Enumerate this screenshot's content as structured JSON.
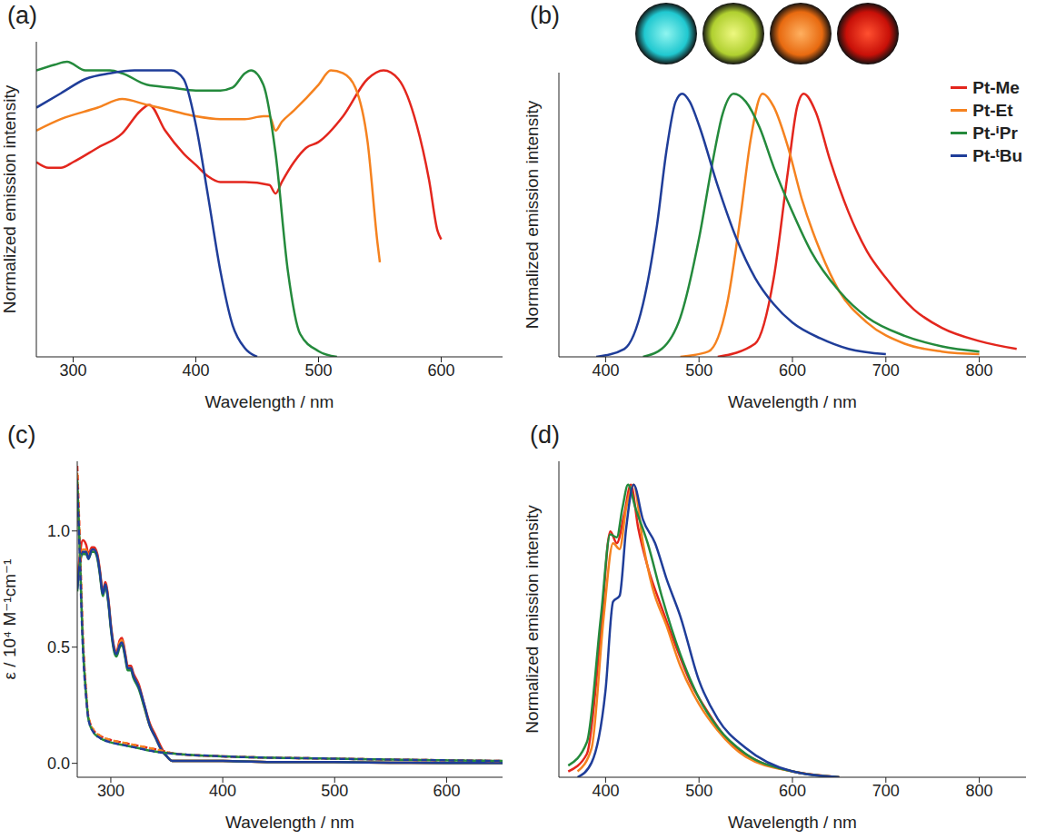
{
  "chart_data": [
    {
      "type": "line",
      "title": "(a)",
      "x_label": "Wavelength / nm",
      "y_label": "Normalized emission intensity",
      "xlim": [
        270,
        650
      ],
      "xticks": [
        300,
        400,
        500,
        600
      ],
      "ylim": [
        0,
        1.1
      ],
      "tick_labels": "x",
      "series": [
        {
          "name": "Pt-Me",
          "color": "#e3261d",
          "x": [
            270,
            280,
            290,
            300,
            320,
            340,
            355,
            362,
            375,
            390,
            400,
            410,
            420,
            440,
            460,
            465,
            470,
            480,
            490,
            500,
            520,
            540,
            553,
            565,
            580,
            590,
            597,
            600
          ],
          "values": [
            0.68,
            0.66,
            0.66,
            0.68,
            0.73,
            0.78,
            0.86,
            0.88,
            0.79,
            0.71,
            0.67,
            0.63,
            0.61,
            0.61,
            0.6,
            0.57,
            0.61,
            0.68,
            0.73,
            0.75,
            0.84,
            0.97,
            1.0,
            0.97,
            0.81,
            0.62,
            0.44,
            0.41
          ]
        },
        {
          "name": "Pt-Et",
          "color": "#f5821f",
          "x": [
            270,
            290,
            320,
            340,
            360,
            380,
            400,
            420,
            440,
            455,
            460,
            465,
            470,
            480,
            500,
            510,
            520,
            530,
            540,
            548,
            550
          ],
          "values": [
            0.79,
            0.83,
            0.87,
            0.9,
            0.88,
            0.86,
            0.84,
            0.83,
            0.83,
            0.84,
            0.84,
            0.79,
            0.82,
            0.86,
            0.95,
            1.0,
            0.99,
            0.94,
            0.75,
            0.4,
            0.33
          ]
        },
        {
          "name": "Pt-ⁱPr",
          "color": "#248a3c",
          "x": [
            270,
            285,
            295,
            310,
            330,
            340,
            360,
            380,
            400,
            420,
            430,
            440,
            445,
            455,
            465,
            475,
            485,
            500,
            515
          ],
          "values": [
            1.0,
            1.02,
            1.03,
            1.0,
            1.0,
            0.99,
            0.95,
            0.94,
            0.93,
            0.93,
            0.94,
            0.99,
            1.0,
            0.95,
            0.71,
            0.3,
            0.08,
            0.02,
            0.0
          ]
        },
        {
          "name": "Pt-ᵗBu",
          "color": "#1f3d99",
          "x": [
            270,
            290,
            310,
            330,
            350,
            380,
            390,
            400,
            410,
            420,
            430,
            440,
            450
          ],
          "values": [
            0.87,
            0.92,
            0.97,
            0.99,
            1.0,
            1.0,
            0.97,
            0.81,
            0.56,
            0.3,
            0.11,
            0.03,
            0.0
          ]
        }
      ]
    },
    {
      "type": "line",
      "title": "(b)",
      "x_label": "Wavelength / nm",
      "y_label": "Normalized emission intensity",
      "xlim": [
        350,
        850
      ],
      "xticks": [
        400,
        500,
        600,
        700,
        800
      ],
      "ylim": [
        0,
        1.08
      ],
      "tick_labels": "x",
      "legend": "upper right",
      "series": [
        {
          "name": "Pt-Me",
          "color": "#e3261d",
          "x": [
            520,
            560,
            580,
            595,
            605,
            612,
            625,
            640,
            660,
            680,
            700,
            730,
            760,
            800,
            840
          ],
          "values": [
            0.0,
            0.05,
            0.3,
            0.7,
            0.95,
            1.0,
            0.93,
            0.75,
            0.55,
            0.4,
            0.3,
            0.18,
            0.11,
            0.06,
            0.03
          ]
        },
        {
          "name": "Pt-Et",
          "color": "#f5821f",
          "x": [
            480,
            510,
            530,
            545,
            555,
            568,
            580,
            595,
            610,
            630,
            650,
            680,
            720,
            760,
            800
          ],
          "values": [
            0.0,
            0.02,
            0.2,
            0.55,
            0.82,
            1.0,
            0.95,
            0.8,
            0.6,
            0.4,
            0.25,
            0.13,
            0.05,
            0.02,
            0.01
          ]
        },
        {
          "name": "Pt-ⁱPr",
          "color": "#248a3c",
          "x": [
            440,
            460,
            480,
            500,
            515,
            525,
            537,
            550,
            565,
            580,
            600,
            620,
            650,
            680,
            720,
            760,
            800
          ],
          "values": [
            0.0,
            0.03,
            0.15,
            0.45,
            0.75,
            0.92,
            1.0,
            0.97,
            0.87,
            0.72,
            0.55,
            0.4,
            0.25,
            0.15,
            0.08,
            0.04,
            0.02
          ]
        },
        {
          "name": "Pt-ᵗBu",
          "color": "#1f3d99",
          "x": [
            390,
            420,
            440,
            455,
            465,
            475,
            482,
            490,
            500,
            520,
            540,
            560,
            580,
            600,
            630,
            660,
            700
          ],
          "values": [
            0.0,
            0.03,
            0.2,
            0.5,
            0.78,
            0.97,
            1.0,
            0.97,
            0.88,
            0.65,
            0.45,
            0.3,
            0.2,
            0.13,
            0.07,
            0.03,
            0.01
          ]
        }
      ]
    },
    {
      "type": "line",
      "title": "(c)",
      "x_label": "Wavelength / nm",
      "y_label": "ε / 10⁴ M⁻¹cm⁻¹",
      "xlim": [
        270,
        650
      ],
      "xticks": [
        300,
        400,
        500,
        600
      ],
      "ylim": [
        -0.06,
        1.3
      ],
      "yticks": [
        {
          "value": 0,
          "label": "0.0"
        },
        {
          "value": 0.5,
          "label": "0.5"
        },
        {
          "value": 1,
          "label": "1.0"
        }
      ],
      "series": [
        {
          "name": "Pt-Me",
          "color": "#e3261d",
          "line_style": "solid",
          "x": [
            270,
            272,
            275,
            278,
            280,
            283,
            285,
            288,
            290,
            293,
            295,
            298,
            300,
            303,
            305,
            308,
            310,
            313,
            315,
            318,
            320,
            325,
            330,
            335,
            340,
            345,
            350,
            355,
            360,
            380,
            400,
            450,
            500,
            550,
            600,
            650
          ],
          "values": [
            0.78,
            0.88,
            0.96,
            0.94,
            0.9,
            0.93,
            0.93,
            0.9,
            0.84,
            0.74,
            0.78,
            0.7,
            0.6,
            0.5,
            0.48,
            0.53,
            0.54,
            0.47,
            0.42,
            0.42,
            0.39,
            0.34,
            0.25,
            0.17,
            0.12,
            0.07,
            0.03,
            0.01,
            0.01,
            0.01,
            0.01,
            0.005,
            0.005,
            0.003,
            0.002,
            0.002
          ]
        },
        {
          "name": "Pt-Et",
          "color": "#f5821f",
          "line_style": "solid",
          "x": [
            270,
            272,
            275,
            278,
            280,
            283,
            285,
            288,
            290,
            293,
            295,
            298,
            300,
            303,
            305,
            308,
            310,
            313,
            315,
            318,
            320,
            325,
            330,
            335,
            340,
            345,
            350,
            355,
            360,
            380,
            400,
            450,
            500,
            550,
            600,
            650
          ],
          "values": [
            0.76,
            0.86,
            0.92,
            0.92,
            0.89,
            0.92,
            0.92,
            0.89,
            0.83,
            0.73,
            0.77,
            0.69,
            0.59,
            0.49,
            0.47,
            0.52,
            0.53,
            0.46,
            0.41,
            0.41,
            0.38,
            0.33,
            0.24,
            0.16,
            0.11,
            0.06,
            0.03,
            0.01,
            0.01,
            0.01,
            0.01,
            0.005,
            0.005,
            0.003,
            0.002,
            0.002
          ]
        },
        {
          "name": "Pt-ⁱPr",
          "color": "#248a3c",
          "line_style": "solid",
          "x": [
            270,
            272,
            275,
            278,
            280,
            283,
            285,
            288,
            290,
            293,
            295,
            298,
            300,
            303,
            305,
            308,
            310,
            313,
            315,
            318,
            320,
            325,
            330,
            335,
            340,
            345,
            350,
            355,
            360,
            380,
            400,
            450,
            500,
            550,
            600,
            650
          ],
          "values": [
            0.74,
            0.84,
            0.9,
            0.9,
            0.88,
            0.91,
            0.91,
            0.88,
            0.82,
            0.72,
            0.76,
            0.68,
            0.58,
            0.48,
            0.46,
            0.5,
            0.51,
            0.45,
            0.4,
            0.4,
            0.37,
            0.32,
            0.24,
            0.16,
            0.11,
            0.06,
            0.03,
            0.01,
            0.01,
            0.01,
            0.01,
            0.005,
            0.005,
            0.003,
            0.002,
            0.002
          ]
        },
        {
          "name": "Pt-ᵗBu",
          "color": "#1f3d99",
          "line_style": "solid",
          "x": [
            270,
            272,
            275,
            278,
            280,
            283,
            285,
            288,
            290,
            293,
            295,
            298,
            300,
            303,
            305,
            308,
            310,
            313,
            315,
            318,
            320,
            325,
            330,
            335,
            340,
            345,
            350,
            355,
            360,
            380,
            400,
            450,
            500,
            550,
            600,
            650
          ],
          "values": [
            0.75,
            0.85,
            0.91,
            0.91,
            0.88,
            0.92,
            0.92,
            0.89,
            0.83,
            0.73,
            0.77,
            0.69,
            0.59,
            0.49,
            0.47,
            0.51,
            0.52,
            0.46,
            0.41,
            0.41,
            0.38,
            0.33,
            0.25,
            0.16,
            0.11,
            0.06,
            0.03,
            0.01,
            0.01,
            0.01,
            0.01,
            0.005,
            0.005,
            0.003,
            0.002,
            0.002
          ]
        },
        {
          "name": "Pt-Me",
          "color": "#e3261d",
          "line_style": "dashed",
          "x": [
            270,
            272,
            275,
            278,
            280,
            285,
            290,
            300,
            310,
            320,
            340,
            360,
            400,
            500,
            650
          ],
          "values": [
            1.28,
            1.0,
            0.55,
            0.3,
            0.2,
            0.14,
            0.12,
            0.1,
            0.09,
            0.08,
            0.06,
            0.04,
            0.03,
            0.02,
            0.01
          ]
        },
        {
          "name": "Pt-Et",
          "color": "#f5821f",
          "line_style": "dashed",
          "x": [
            270,
            272,
            275,
            278,
            280,
            285,
            290,
            300,
            310,
            320,
            340,
            360,
            400,
            500,
            650
          ],
          "values": [
            1.25,
            0.98,
            0.54,
            0.3,
            0.2,
            0.14,
            0.12,
            0.1,
            0.09,
            0.08,
            0.06,
            0.04,
            0.03,
            0.02,
            0.01
          ]
        },
        {
          "name": "Pt-ⁱPr",
          "color": "#248a3c",
          "line_style": "dashed",
          "x": [
            270,
            272,
            275,
            278,
            280,
            285,
            290,
            300,
            310,
            320,
            340,
            360,
            400,
            500,
            650
          ],
          "values": [
            1.22,
            0.95,
            0.52,
            0.29,
            0.19,
            0.13,
            0.11,
            0.09,
            0.08,
            0.07,
            0.05,
            0.04,
            0.03,
            0.02,
            0.01
          ]
        },
        {
          "name": "Pt-ᵗBu",
          "color": "#1f3d99",
          "line_style": "dashed",
          "x": [
            270,
            272,
            275,
            278,
            280,
            285,
            290,
            300,
            310,
            320,
            340,
            360,
            400,
            500,
            650
          ],
          "values": [
            1.2,
            0.93,
            0.5,
            0.28,
            0.19,
            0.13,
            0.11,
            0.09,
            0.08,
            0.07,
            0.05,
            0.04,
            0.03,
            0.02,
            0.01
          ]
        }
      ]
    },
    {
      "type": "line",
      "title": "(d)",
      "x_label": "Wavelength / nm",
      "y_label": "Normalized emission intensity",
      "xlim": [
        350,
        850
      ],
      "xticks": [
        400,
        500,
        600,
        700,
        800
      ],
      "ylim": [
        0,
        1.08
      ],
      "tick_labels": "x",
      "series": [
        {
          "name": "Pt-Me",
          "color": "#e3261d",
          "x": [
            360,
            380,
            395,
            405,
            412,
            420,
            427,
            435,
            445,
            460,
            475,
            490,
            510,
            530,
            560,
            600,
            650
          ],
          "values": [
            0.02,
            0.08,
            0.5,
            0.84,
            0.8,
            0.9,
            1.0,
            0.85,
            0.72,
            0.58,
            0.45,
            0.33,
            0.22,
            0.13,
            0.06,
            0.02,
            0.0
          ]
        },
        {
          "name": "Pt-Et",
          "color": "#f5821f",
          "x": [
            370,
            385,
            398,
            408,
            415,
            422,
            430,
            440,
            450,
            465,
            480,
            500,
            520,
            550,
            600,
            650
          ],
          "values": [
            0.02,
            0.1,
            0.55,
            0.8,
            0.78,
            0.92,
            1.0,
            0.8,
            0.65,
            0.52,
            0.38,
            0.25,
            0.16,
            0.07,
            0.02,
            0.0
          ]
        },
        {
          "name": "Pt-ⁱPr",
          "color": "#248a3c",
          "x": [
            360,
            380,
            395,
            405,
            412,
            418,
            424,
            432,
            445,
            460,
            480,
            500,
            520,
            550,
            600,
            650
          ],
          "values": [
            0.04,
            0.12,
            0.55,
            0.83,
            0.82,
            0.92,
            1.0,
            0.92,
            0.8,
            0.62,
            0.42,
            0.27,
            0.17,
            0.08,
            0.02,
            0.0
          ]
        },
        {
          "name": "Pt-ᵗBu",
          "color": "#1f3d99",
          "x": [
            370,
            385,
            400,
            408,
            415,
            422,
            430,
            440,
            453,
            465,
            480,
            500,
            520,
            550,
            600,
            650
          ],
          "values": [
            0.0,
            0.05,
            0.3,
            0.6,
            0.62,
            0.85,
            1.0,
            0.88,
            0.8,
            0.68,
            0.55,
            0.33,
            0.2,
            0.1,
            0.02,
            0.0
          ]
        }
      ]
    }
  ]
}
